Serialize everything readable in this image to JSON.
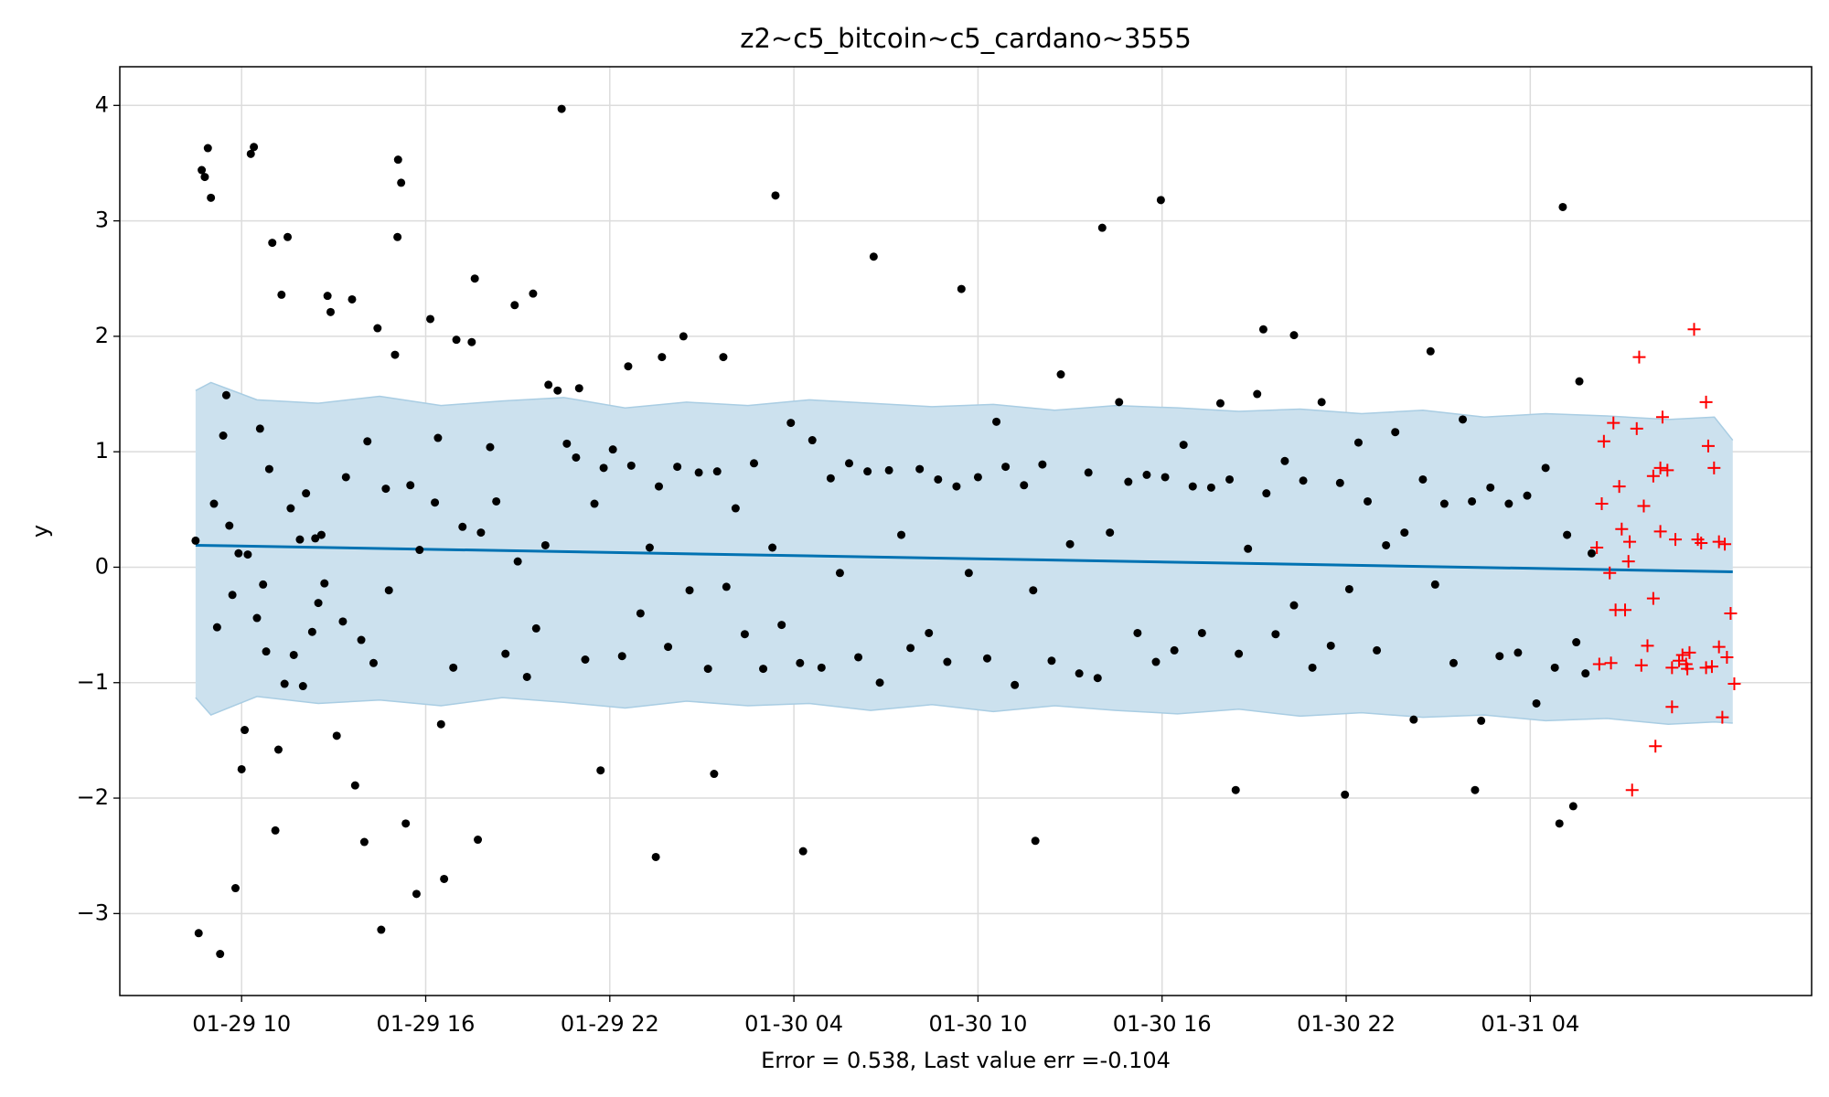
{
  "chart_data": {
    "type": "scatter",
    "title": "z2~c5_bitcoin~c5_cardano~3555",
    "xlabel": "Error = 0.538, Last value err =-0.104",
    "ylabel": "y",
    "xlim": [
      6.03,
      61.17
    ],
    "ylim": [
      -3.71,
      4.335
    ],
    "xticks": [
      {
        "value": 10,
        "label": "01-29 10"
      },
      {
        "value": 16,
        "label": "01-29 16"
      },
      {
        "value": 22,
        "label": "01-29 22"
      },
      {
        "value": 28,
        "label": "01-30 04"
      },
      {
        "value": 34,
        "label": "01-30 10"
      },
      {
        "value": 40,
        "label": "01-30 16"
      },
      {
        "value": 46,
        "label": "01-30 22"
      },
      {
        "value": 52,
        "label": "01-31 04"
      }
    ],
    "yticks": [
      {
        "value": -3,
        "label": "−3"
      },
      {
        "value": -2,
        "label": "−2"
      },
      {
        "value": -1,
        "label": "−1"
      },
      0,
      1,
      2,
      3,
      4
    ],
    "grid": true,
    "band": {
      "color": "#cce1ee",
      "edge_color": "#a9cde3",
      "x": [
        8.5,
        9.0,
        10.5,
        12.5,
        14.5,
        16.5,
        18.5,
        20.5,
        22.5,
        24.5,
        26.5,
        28.5,
        30.5,
        32.5,
        34.5,
        36.5,
        38.5,
        40.5,
        42.5,
        44.5,
        46.5,
        48.5,
        50.5,
        52.5,
        54.5,
        56.5,
        58.0,
        58.6
      ],
      "upper": [
        1.53,
        1.6,
        1.45,
        1.42,
        1.48,
        1.4,
        1.44,
        1.47,
        1.38,
        1.43,
        1.4,
        1.45,
        1.42,
        1.39,
        1.41,
        1.36,
        1.4,
        1.38,
        1.35,
        1.37,
        1.33,
        1.36,
        1.3,
        1.33,
        1.31,
        1.28,
        1.3,
        1.1
      ],
      "lower": [
        -1.13,
        -1.28,
        -1.12,
        -1.18,
        -1.15,
        -1.2,
        -1.13,
        -1.17,
        -1.22,
        -1.16,
        -1.2,
        -1.18,
        -1.24,
        -1.19,
        -1.25,
        -1.2,
        -1.24,
        -1.27,
        -1.23,
        -1.29,
        -1.26,
        -1.3,
        -1.28,
        -1.33,
        -1.31,
        -1.36,
        -1.34,
        -1.35
      ]
    },
    "trend": {
      "color": "#0072b2",
      "x": [
        8.5,
        58.6
      ],
      "values": [
        0.19,
        -0.04
      ]
    },
    "series": [
      {
        "color": "#000000",
        "marker": "dot",
        "x": [
          8.5,
          8.6,
          8.7,
          8.8,
          8.9,
          9.0,
          9.1,
          9.2,
          9.3,
          9.4,
          9.5,
          9.6,
          9.7,
          9.8,
          9.9,
          10.0,
          10.1,
          10.2,
          10.3,
          10.4,
          10.5,
          10.6,
          10.7,
          10.8,
          10.9,
          11.0,
          11.1,
          11.2,
          11.3,
          11.4,
          11.5,
          11.6,
          11.7,
          11.9,
          12.0,
          12.1,
          12.3,
          12.4,
          12.5,
          12.6,
          12.7,
          12.8,
          12.9,
          13.1,
          13.3,
          13.4,
          13.6,
          13.7,
          13.9,
          14.0,
          14.1,
          14.3,
          14.43,
          14.55,
          14.7,
          14.8,
          15.0,
          15.08,
          15.1,
          15.2,
          15.35,
          15.5,
          15.7,
          15.8,
          16.15,
          16.3,
          16.4,
          16.5,
          16.6,
          16.9,
          17.0,
          17.2,
          17.5,
          17.6,
          17.7,
          17.8,
          18.1,
          18.3,
          18.6,
          18.9,
          19.0,
          19.3,
          19.5,
          19.6,
          19.9,
          20.0,
          20.3,
          20.43,
          20.6,
          20.9,
          21.0,
          21.2,
          21.5,
          21.7,
          21.8,
          22.1,
          22.4,
          22.6,
          22.7,
          23.0,
          23.3,
          23.5,
          23.6,
          23.7,
          23.9,
          24.2,
          24.4,
          24.6,
          24.9,
          25.2,
          25.4,
          25.5,
          25.7,
          25.8,
          26.1,
          26.4,
          26.7,
          27.0,
          27.3,
          27.4,
          27.6,
          27.9,
          28.2,
          28.3,
          28.6,
          28.9,
          29.2,
          29.5,
          29.8,
          30.1,
          30.4,
          30.6,
          30.8,
          31.1,
          31.5,
          31.8,
          32.1,
          32.4,
          32.7,
          33.0,
          33.3,
          33.46,
          33.7,
          34.0,
          34.3,
          34.6,
          34.9,
          35.2,
          35.5,
          35.8,
          35.87,
          36.1,
          36.4,
          36.7,
          37.0,
          37.3,
          37.6,
          37.9,
          38.05,
          38.3,
          38.6,
          38.9,
          39.2,
          39.5,
          39.8,
          39.96,
          40.1,
          40.4,
          40.7,
          41.0,
          41.3,
          41.6,
          41.9,
          42.2,
          42.4,
          42.5,
          42.8,
          43.1,
          43.3,
          43.4,
          43.7,
          44.0,
          44.3,
          44.3,
          44.6,
          44.9,
          45.2,
          45.5,
          45.8,
          45.96,
          46.1,
          46.4,
          46.7,
          47.0,
          47.3,
          47.6,
          47.9,
          48.2,
          48.5,
          48.75,
          48.9,
          49.2,
          49.5,
          49.8,
          50.1,
          50.2,
          50.4,
          50.7,
          51.0,
          51.3,
          51.6,
          51.9,
          52.2,
          52.5,
          52.8,
          52.95,
          53.06,
          53.2,
          53.4,
          53.5,
          53.6,
          53.8,
          54.0
        ],
        "values": [
          0.23,
          -3.17,
          3.44,
          3.38,
          3.63,
          3.2,
          0.55,
          -0.52,
          -3.35,
          1.14,
          1.49,
          0.36,
          -0.24,
          -2.78,
          0.12,
          -1.75,
          -1.41,
          0.11,
          3.58,
          3.64,
          -0.44,
          1.2,
          -0.15,
          -0.73,
          0.85,
          2.81,
          -2.28,
          -1.58,
          2.36,
          -1.01,
          2.86,
          0.51,
          -0.76,
          0.24,
          -1.03,
          0.64,
          -0.56,
          0.25,
          -0.31,
          0.28,
          -0.14,
          2.35,
          2.21,
          -1.46,
          -0.47,
          0.78,
          2.32,
          -1.89,
          -0.63,
          -2.38,
          1.09,
          -0.83,
          2.07,
          -3.14,
          0.68,
          -0.2,
          1.84,
          2.86,
          3.53,
          3.33,
          -2.22,
          0.71,
          -2.83,
          0.15,
          2.15,
          0.56,
          1.12,
          -1.36,
          -2.7,
          -0.87,
          1.97,
          0.35,
          1.95,
          2.5,
          -2.36,
          0.3,
          1.04,
          0.57,
          -0.75,
          2.27,
          0.05,
          -0.95,
          2.37,
          -0.53,
          0.19,
          1.58,
          1.53,
          3.97,
          1.07,
          0.95,
          1.55,
          -0.8,
          0.55,
          -1.76,
          0.86,
          1.02,
          -0.77,
          1.74,
          0.88,
          -0.4,
          0.17,
          -2.51,
          0.7,
          1.82,
          -0.69,
          0.87,
          2.0,
          -0.2,
          0.82,
          -0.88,
          -1.79,
          0.83,
          1.82,
          -0.17,
          0.51,
          -0.58,
          0.9,
          -0.88,
          0.17,
          3.22,
          -0.5,
          1.25,
          -0.83,
          -2.46,
          1.1,
          -0.87,
          0.77,
          -0.05,
          0.9,
          -0.78,
          0.83,
          2.69,
          -1.0,
          0.84,
          0.28,
          -0.7,
          0.85,
          -0.57,
          0.76,
          -0.82,
          0.7,
          2.41,
          -0.05,
          0.78,
          -0.79,
          1.26,
          0.87,
          -1.02,
          0.71,
          -0.2,
          -2.37,
          0.89,
          -0.81,
          1.67,
          0.2,
          -0.92,
          0.82,
          -0.96,
          2.94,
          0.3,
          1.43,
          0.74,
          -0.57,
          0.8,
          -0.82,
          3.18,
          0.78,
          -0.72,
          1.06,
          0.7,
          -0.57,
          0.69,
          1.42,
          0.76,
          -1.93,
          -0.75,
          0.16,
          1.5,
          2.06,
          0.64,
          -0.58,
          0.92,
          -0.33,
          2.01,
          0.75,
          -0.87,
          1.43,
          -0.68,
          0.73,
          -1.97,
          -0.19,
          1.08,
          0.57,
          -0.72,
          0.19,
          1.17,
          0.3,
          -1.32,
          0.76,
          1.87,
          -0.15,
          0.55,
          -0.83,
          1.28,
          0.57,
          -1.93,
          -1.33,
          0.69,
          -0.77,
          0.55,
          -0.74,
          0.62,
          -1.18,
          0.86,
          -0.87,
          -2.22,
          3.12,
          0.28,
          -2.07,
          -0.65,
          1.61,
          -0.92,
          0.12
        ]
      },
      {
        "color": "#ff0000",
        "marker": "plus",
        "x": [
          57.34,
          55.55,
          57.73,
          54.71,
          54.4,
          55.47,
          56.31,
          57.8,
          57.99,
          56.01,
          56.24,
          56.47,
          54.9,
          54.33,
          55.7,
          54.98,
          56.24,
          55.24,
          54.17,
          56.73,
          57.46,
          57.57,
          58.15,
          58.34,
          55.2,
          54.59,
          56.01,
          54.78,
          55.09,
          58.53,
          55.82,
          58.15,
          58.41,
          56.96,
          57.19,
          56.85,
          57.08,
          54.25,
          54.63,
          55.62,
          56.62,
          57.12,
          57.73,
          57.92,
          58.65,
          56.62,
          58.26,
          56.08,
          55.32
        ],
        "values": [
          2.06,
          1.82,
          1.43,
          1.25,
          1.09,
          1.2,
          1.3,
          1.05,
          0.86,
          0.79,
          0.86,
          0.84,
          0.7,
          0.55,
          0.53,
          0.33,
          0.31,
          0.22,
          0.17,
          0.24,
          0.24,
          0.21,
          0.22,
          0.2,
          0.05,
          -0.05,
          -0.27,
          -0.37,
          -0.37,
          -0.4,
          -0.68,
          -0.69,
          -0.78,
          -0.76,
          -0.74,
          -0.81,
          -0.84,
          -0.84,
          -0.83,
          -0.85,
          -0.87,
          -0.88,
          -0.87,
          -0.86,
          -1.01,
          -1.21,
          -1.3,
          -1.55,
          -1.93
        ]
      }
    ]
  }
}
